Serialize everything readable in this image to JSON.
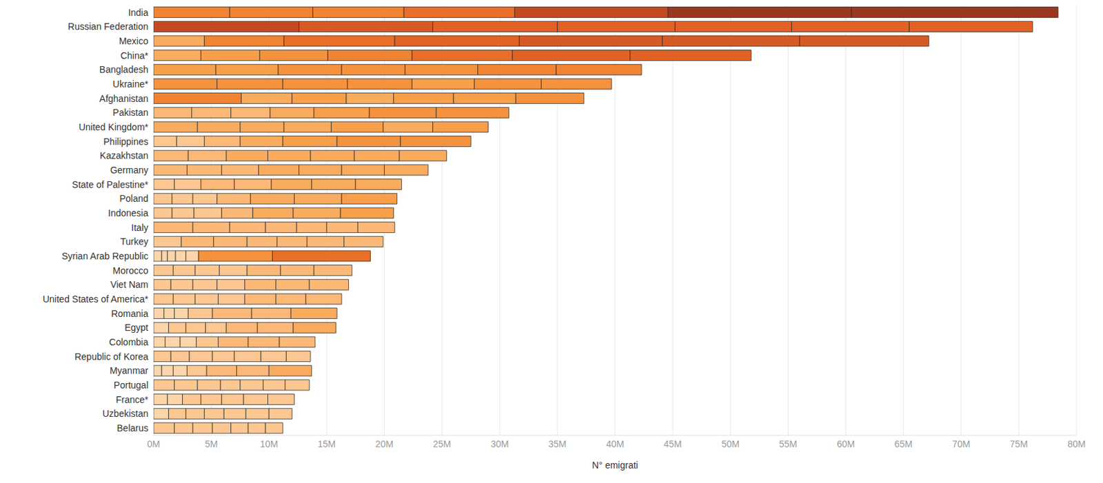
{
  "chart_data": {
    "type": "bar",
    "orientation": "horizontal",
    "stacked": true,
    "grid": true,
    "x_label": "N° emigrati",
    "categories": [
      "India",
      "Russian Federation",
      "Mexico",
      "China*",
      "Bangladesh",
      "Ukraine*",
      "Afghanistan",
      "Pakistan",
      "United Kingdom*",
      "Philippines",
      "Kazakhstan",
      "Germany",
      "State of Palestine*",
      "Poland",
      "Indonesia",
      "Italy",
      "Turkey",
      "Syrian Arab Republic",
      "Morocco",
      "Viet Nam",
      "United States of America*",
      "Romania",
      "Egypt",
      "Colombia",
      "Republic of Korea",
      "Myanmar",
      "Portugal",
      "France*",
      "Uzbekistan",
      "Belarus"
    ],
    "xlim": [
      0,
      80000000
    ],
    "xticks": [
      {
        "value": 0,
        "label": "0M"
      },
      {
        "value": 5000000,
        "label": "5M"
      },
      {
        "value": 10000000,
        "label": "10M"
      },
      {
        "value": 15000000,
        "label": "15M"
      },
      {
        "value": 20000000,
        "label": "20M"
      },
      {
        "value": 25000000,
        "label": "25M"
      },
      {
        "value": 30000000,
        "label": "30M"
      },
      {
        "value": 35000000,
        "label": "35M"
      },
      {
        "value": 40000000,
        "label": "40M"
      },
      {
        "value": 45000000,
        "label": "45M"
      },
      {
        "value": 50000000,
        "label": "50M"
      },
      {
        "value": 55000000,
        "label": "55M"
      },
      {
        "value": 60000000,
        "label": "60M"
      },
      {
        "value": 65000000,
        "label": "65M"
      },
      {
        "value": 70000000,
        "label": "70M"
      },
      {
        "value": 75000000,
        "label": "75M"
      },
      {
        "value": 80000000,
        "label": "80M"
      }
    ],
    "series": [
      {
        "values": [
          6600000,
          12600000,
          4400000,
          4100000,
          5400000,
          5500000,
          7600000,
          3300000,
          3800000,
          2000000,
          3000000,
          2900000,
          1800000,
          1600000,
          1600000,
          3400000,
          2400000,
          700000,
          1700000,
          1500000,
          1700000,
          900000,
          1300000,
          1000000,
          1500000,
          700000,
          1800000,
          1200000,
          1300000,
          1800000
        ],
        "colors": [
          "#f08432",
          "#c24b22",
          "#f9ab5e",
          "#f9ab5e",
          "#f79f4b",
          "#f4923e",
          "#f08432",
          "#fbb877",
          "#f9ab5e",
          "#fcc791",
          "#fbb877",
          "#fbb877",
          "#fcc791",
          "#fcc791",
          "#fcc791",
          "#fbb877",
          "#fcc791",
          "#fdd5ab",
          "#fcc791",
          "#fcc791",
          "#fcc791",
          "#fdd5ab",
          "#fdd5ab",
          "#fdd5ab",
          "#fcc791",
          "#fdd5ab",
          "#fcc791",
          "#fdd5ab",
          "#fdd5ab",
          "#fcc791"
        ]
      },
      {
        "values": [
          7200000,
          11600000,
          6900000,
          5100000,
          5400000,
          5700000,
          4400000,
          3400000,
          3700000,
          2400000,
          3300000,
          3000000,
          2300000,
          1800000,
          1900000,
          3200000,
          2800000,
          500000,
          1900000,
          1900000,
          1900000,
          900000,
          1500000,
          1300000,
          1600000,
          1000000,
          2000000,
          1300000,
          1500000,
          1600000
        ],
        "colors": [
          "#f08432",
          "#d65a24",
          "#f08432",
          "#f79f4b",
          "#f79f4b",
          "#f4923e",
          "#f9ab5e",
          "#fbb877",
          "#f9ab5e",
          "#fcc791",
          "#fbb877",
          "#fbb877",
          "#fcc791",
          "#fcc791",
          "#fcc791",
          "#fbb877",
          "#fbb877",
          "#fdd5ab",
          "#fcc791",
          "#fcc791",
          "#fcc791",
          "#fdd5ab",
          "#fcc791",
          "#fdd5ab",
          "#fcc791",
          "#fdd5ab",
          "#fcc791",
          "#fdd5ab",
          "#fcc791",
          "#fcc791"
        ]
      },
      {
        "values": [
          7900000,
          10800000,
          9600000,
          5900000,
          5500000,
          5600000,
          4700000,
          3400000,
          3800000,
          3100000,
          3600000,
          3200000,
          2900000,
          2100000,
          2400000,
          3100000,
          2900000,
          700000,
          2100000,
          2100000,
          2000000,
          1200000,
          1700000,
          1400000,
          2000000,
          1200000,
          2000000,
          1600000,
          1600000,
          1700000
        ],
        "colors": [
          "#f08432",
          "#e06325",
          "#e96f28",
          "#f4923e",
          "#f4923e",
          "#f4923e",
          "#f79f4b",
          "#fbb877",
          "#f9ab5e",
          "#fbb877",
          "#f9ab5e",
          "#fbb877",
          "#fbb877",
          "#fcc791",
          "#fcc791",
          "#fbb877",
          "#fbb877",
          "#fdd5ab",
          "#fcc791",
          "#fcc791",
          "#fcc791",
          "#fdd5ab",
          "#fcc791",
          "#fdd5ab",
          "#fcc791",
          "#fdd5ab",
          "#fcc791",
          "#fcc791",
          "#fcc791",
          "#fcc791"
        ]
      },
      {
        "values": [
          9600000,
          10200000,
          10800000,
          7300000,
          5500000,
          5600000,
          4100000,
          3800000,
          4100000,
          3700000,
          3700000,
          3500000,
          3200000,
          2900000,
          2700000,
          2700000,
          2600000,
          900000,
          2400000,
          2400000,
          2300000,
          2100000,
          1800000,
          1900000,
          1900000,
          1700000,
          1700000,
          1800000,
          1700000,
          1600000
        ],
        "colors": [
          "#e96f28",
          "#e06325",
          "#e06325",
          "#f08432",
          "#f4923e",
          "#f4923e",
          "#f9ab5e",
          "#f9ab5e",
          "#f9ab5e",
          "#f9ab5e",
          "#f9ab5e",
          "#f9ab5e",
          "#fbb877",
          "#fbb877",
          "#fbb877",
          "#fbb877",
          "#fbb877",
          "#fdd5ab",
          "#fcc791",
          "#fcc791",
          "#fcc791",
          "#fcc791",
          "#fcc791",
          "#fcc791",
          "#fcc791",
          "#fcc791",
          "#fcc791",
          "#fcc791",
          "#fcc791",
          "#fcc791"
        ]
      },
      {
        "values": [
          13300000,
          10100000,
          12400000,
          8700000,
          6300000,
          5400000,
          5200000,
          4800000,
          4500000,
          4700000,
          3800000,
          3700000,
          3500000,
          3800000,
          3500000,
          2600000,
          2600000,
          1100000,
          2900000,
          2700000,
          2700000,
          3400000,
          2700000,
          2600000,
          2300000,
          2600000,
          2000000,
          1900000,
          1900000,
          1500000
        ],
        "colors": [
          "#c24b22",
          "#e06325",
          "#d65a24",
          "#e96f28",
          "#f4923e",
          "#f79f4b",
          "#f79f4b",
          "#f79f4b",
          "#f79f4b",
          "#f79f4b",
          "#f9ab5e",
          "#f9ab5e",
          "#f9ab5e",
          "#f9ab5e",
          "#f9ab5e",
          "#fbb877",
          "#fbb877",
          "#fdd5ab",
          "#fbb877",
          "#fbb877",
          "#fbb877",
          "#fbb877",
          "#fbb877",
          "#fbb877",
          "#fcc791",
          "#fbb877",
          "#fcc791",
          "#fcc791",
          "#fcc791",
          "#fcc791"
        ]
      },
      {
        "values": [
          15900000,
          10200000,
          11900000,
          10200000,
          6800000,
          5800000,
          5400000,
          5800000,
          4300000,
          5500000,
          3900000,
          3700000,
          3800000,
          4100000,
          4100000,
          2700000,
          3200000,
          6400000,
          2900000,
          2900000,
          2600000,
          3400000,
          3100000,
          2700000,
          2200000,
          2800000,
          1900000,
          2100000,
          2000000,
          1500000
        ],
        "colors": [
          "#9b3820",
          "#e06325",
          "#d65a24",
          "#e06325",
          "#f08432",
          "#f4923e",
          "#f79f4b",
          "#f4923e",
          "#f9ab5e",
          "#f4923e",
          "#f9ab5e",
          "#f9ab5e",
          "#f9ab5e",
          "#f9ab5e",
          "#f9ab5e",
          "#fbb877",
          "#fbb877",
          "#f4923e",
          "#fbb877",
          "#fbb877",
          "#fbb877",
          "#fbb877",
          "#fbb877",
          "#fbb877",
          "#fcc791",
          "#fbb877",
          "#fcc791",
          "#fcc791",
          "#fcc791",
          "#fcc791"
        ]
      },
      {
        "values": [
          17900000,
          10700000,
          11200000,
          10500000,
          7400000,
          6100000,
          5900000,
          6300000,
          4800000,
          6100000,
          4100000,
          3800000,
          4000000,
          4800000,
          4600000,
          3200000,
          3400000,
          8500000,
          3300000,
          3400000,
          3100000,
          4000000,
          3700000,
          3100000,
          2100000,
          3700000,
          2100000,
          2300000,
          2000000,
          1500000
        ],
        "colors": [
          "#9b3820",
          "#e06325",
          "#d65a24",
          "#e06325",
          "#f08432",
          "#f4923e",
          "#f4923e",
          "#f4923e",
          "#f79f4b",
          "#f4923e",
          "#f9ab5e",
          "#f9ab5e",
          "#f9ab5e",
          "#f79f4b",
          "#f79f4b",
          "#fbb877",
          "#fbb877",
          "#e96f28",
          "#fbb877",
          "#fbb877",
          "#fbb877",
          "#f9ab5e",
          "#f9ab5e",
          "#fbb877",
          "#fcc791",
          "#f9ab5e",
          "#fcc791",
          "#fcc791",
          "#fcc791",
          "#fcc791"
        ]
      }
    ]
  }
}
